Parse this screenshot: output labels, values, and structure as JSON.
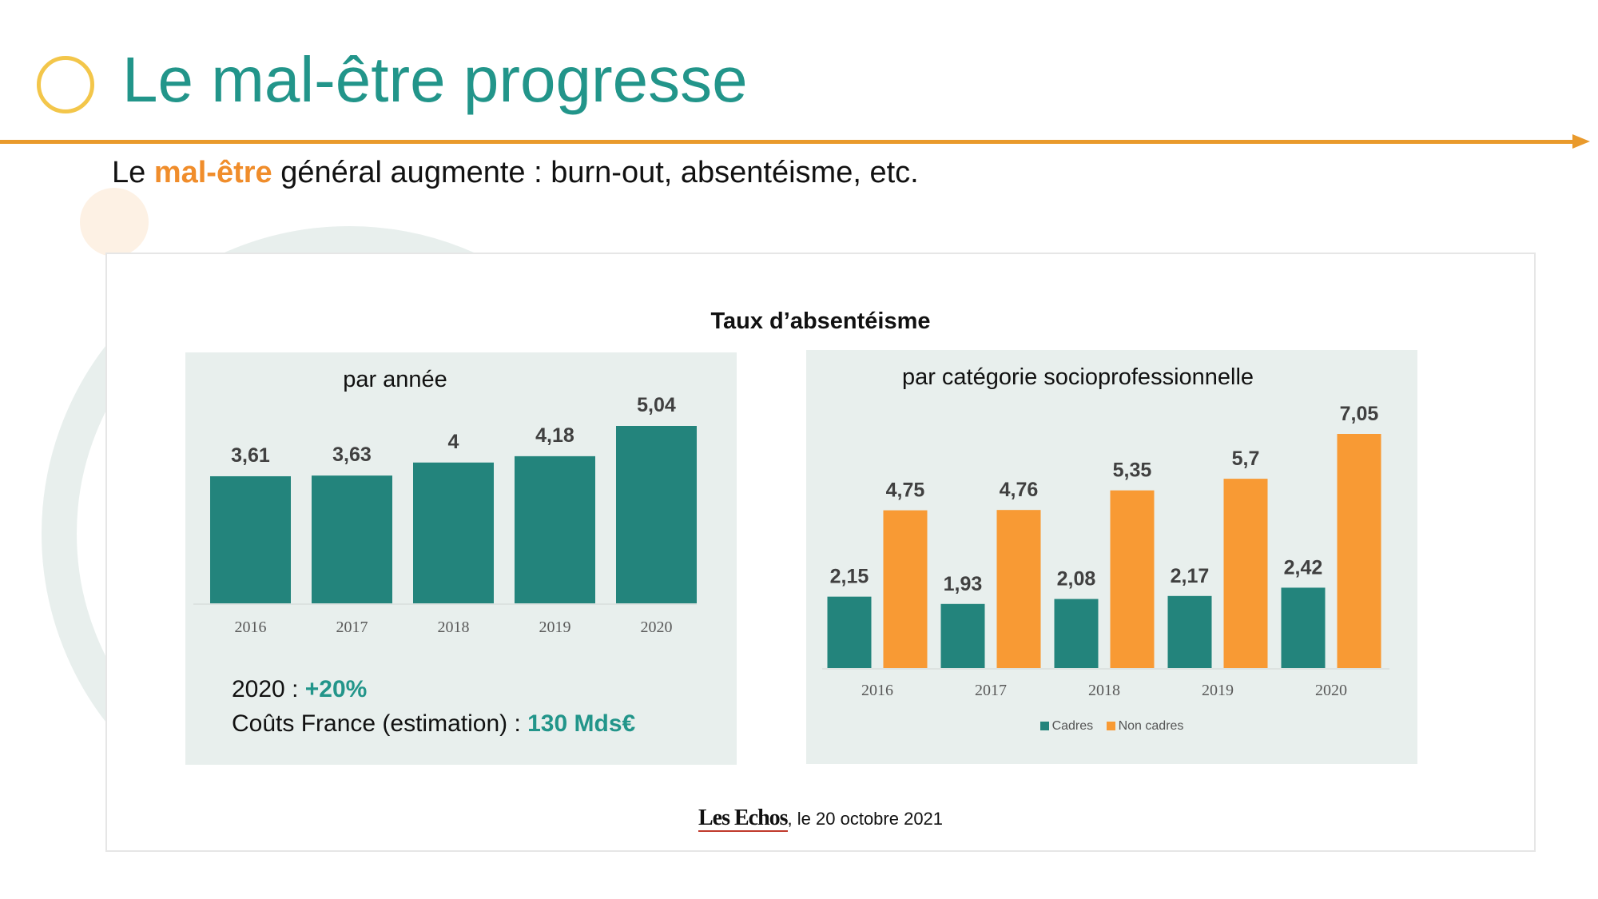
{
  "header": {
    "title": "Le mal-être progresse",
    "subtitle_pre": "Le ",
    "subtitle_highlight": "mal-être",
    "subtitle_post": " général augmente : burn-out, absentéisme, etc."
  },
  "card": {
    "title": "Taux d’absentéisme",
    "stat_year_label": "2020 : ",
    "stat_year_value": "+20%",
    "stat_cost_label": "Coûts France (estimation) : ",
    "stat_cost_value": "130 Mds€",
    "source_logo": "Les Echos",
    "source_text": ", le 20 octobre 2021"
  },
  "colors": {
    "teal": "#23847c",
    "orange": "#f89a34",
    "title_teal": "#22958a",
    "accent_orange": "#e99a2c",
    "ring_yellow": "#f3c64a"
  },
  "chart_data": [
    {
      "type": "bar",
      "title": "par année",
      "categories": [
        "2016",
        "2017",
        "2018",
        "2019",
        "2020"
      ],
      "values": [
        3.61,
        3.63,
        4,
        4.18,
        5.04
      ],
      "data_labels": [
        "3,61",
        "3,63",
        "4",
        "4,18",
        "5,04"
      ],
      "xlabel": "",
      "ylabel": "",
      "ylim": [
        0,
        5.04
      ],
      "grid": false,
      "legend": "none"
    },
    {
      "type": "bar",
      "title": "par catégorie socioprofessionnelle",
      "categories": [
        "2016",
        "2017",
        "2018",
        "2019",
        "2020"
      ],
      "series": [
        {
          "name": "Cadres",
          "values": [
            2.15,
            1.93,
            2.08,
            2.17,
            2.42
          ],
          "data_labels": [
            "2,15",
            "1,93",
            "2,08",
            "2,17",
            "2,42"
          ]
        },
        {
          "name": "Non cadres",
          "values": [
            4.75,
            4.76,
            5.35,
            5.7,
            7.05
          ],
          "data_labels": [
            "4,75",
            "4,76",
            "5,35",
            "5,7",
            "7,05"
          ]
        }
      ],
      "xlabel": "",
      "ylabel": "",
      "ylim": [
        0,
        7.05
      ],
      "grid": false,
      "legend": "bottom"
    }
  ]
}
